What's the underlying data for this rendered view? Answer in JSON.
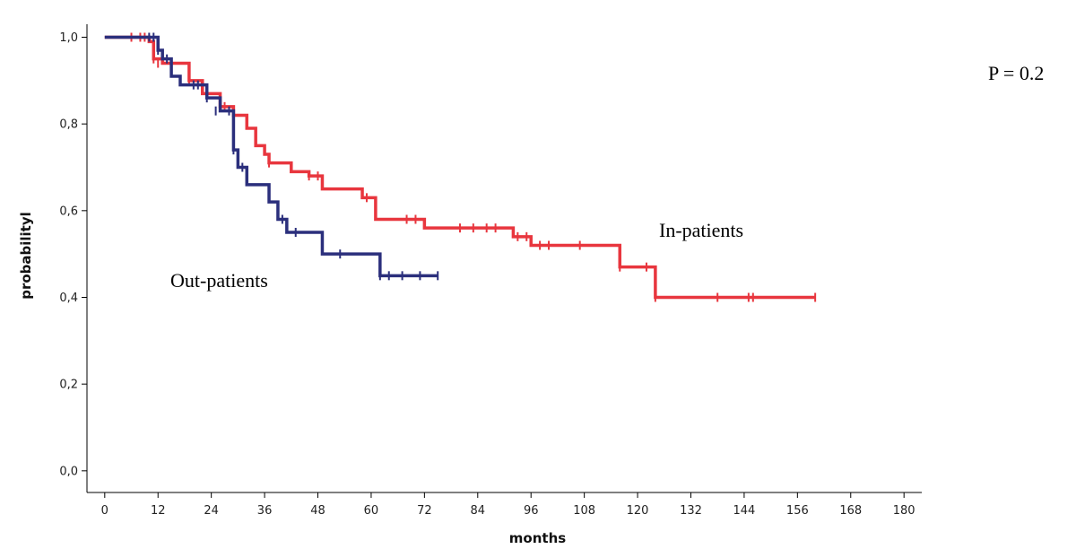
{
  "chart_data": {
    "type": "line",
    "title": "",
    "xlabel": "months",
    "ylabel": "probabilityl",
    "xlim": [
      -4,
      184
    ],
    "ylim": [
      -0.05,
      1.03
    ],
    "x_ticks": [
      0,
      12,
      24,
      36,
      48,
      60,
      72,
      84,
      96,
      108,
      120,
      132,
      144,
      156,
      168,
      180
    ],
    "y_ticks": [
      0.0,
      0.2,
      0.4,
      0.6,
      0.8,
      1.0
    ],
    "x_tick_labels": [
      "0",
      "12",
      "24",
      "36",
      "48",
      "60",
      "72",
      "84",
      "96",
      "108",
      "120",
      "132",
      "144",
      "156",
      "168",
      "180"
    ],
    "y_tick_labels": [
      "0,0",
      "0,2",
      "0,4",
      "0,6",
      "0,8",
      "1,0"
    ],
    "grid": false,
    "legend": "none",
    "annotations": [
      {
        "text": "P = 0.2"
      },
      {
        "text": "In-patients"
      },
      {
        "text": "Out-patients"
      }
    ],
    "series": [
      {
        "name": "In-patients",
        "color": "#e8363e",
        "steps": [
          [
            0,
            1.0
          ],
          [
            10,
            0.99
          ],
          [
            11,
            0.95
          ],
          [
            13,
            0.94
          ],
          [
            19,
            0.9
          ],
          [
            22,
            0.87
          ],
          [
            26,
            0.84
          ],
          [
            29,
            0.82
          ],
          [
            32,
            0.79
          ],
          [
            34,
            0.75
          ],
          [
            36,
            0.73
          ],
          [
            37,
            0.71
          ],
          [
            42,
            0.69
          ],
          [
            46,
            0.68
          ],
          [
            49,
            0.65
          ],
          [
            58,
            0.63
          ],
          [
            61,
            0.58
          ],
          [
            72,
            0.56
          ],
          [
            92,
            0.54
          ],
          [
            96,
            0.52
          ],
          [
            116,
            0.47
          ],
          [
            124,
            0.4
          ],
          [
            160,
            0.4
          ]
        ],
        "censored": [
          [
            6,
            1.0
          ],
          [
            8,
            1.0
          ],
          [
            9,
            1.0
          ],
          [
            11,
            0.95
          ],
          [
            12,
            0.94
          ],
          [
            19,
            0.9
          ],
          [
            27,
            0.84
          ],
          [
            37,
            0.71
          ],
          [
            46,
            0.68
          ],
          [
            48,
            0.68
          ],
          [
            59,
            0.63
          ],
          [
            68,
            0.58
          ],
          [
            70,
            0.58
          ],
          [
            80,
            0.56
          ],
          [
            83,
            0.56
          ],
          [
            86,
            0.56
          ],
          [
            88,
            0.56
          ],
          [
            93,
            0.54
          ],
          [
            95,
            0.54
          ],
          [
            98,
            0.52
          ],
          [
            100,
            0.52
          ],
          [
            107,
            0.52
          ],
          [
            116,
            0.47
          ],
          [
            122,
            0.47
          ],
          [
            124,
            0.4
          ],
          [
            138,
            0.4
          ],
          [
            145,
            0.4
          ],
          [
            146,
            0.4
          ],
          [
            160,
            0.4
          ]
        ]
      },
      {
        "name": "Out-patients",
        "color": "#2b2f7c",
        "steps": [
          [
            0,
            1.0
          ],
          [
            12,
            0.97
          ],
          [
            13,
            0.95
          ],
          [
            15,
            0.91
          ],
          [
            17,
            0.89
          ],
          [
            23,
            0.86
          ],
          [
            26,
            0.83
          ],
          [
            29,
            0.74
          ],
          [
            30,
            0.7
          ],
          [
            32,
            0.66
          ],
          [
            37,
            0.62
          ],
          [
            39,
            0.58
          ],
          [
            41,
            0.55
          ],
          [
            49,
            0.5
          ],
          [
            62,
            0.45
          ],
          [
            75,
            0.45
          ]
        ],
        "censored": [
          [
            10,
            1.0
          ],
          [
            11,
            1.0
          ],
          [
            12,
            0.97
          ],
          [
            14,
            0.95
          ],
          [
            20,
            0.89
          ],
          [
            21,
            0.89
          ],
          [
            23,
            0.86
          ],
          [
            25,
            0.83
          ],
          [
            28,
            0.83
          ],
          [
            29,
            0.74
          ],
          [
            31,
            0.7
          ],
          [
            40,
            0.58
          ],
          [
            43,
            0.55
          ],
          [
            53,
            0.5
          ],
          [
            62,
            0.45
          ],
          [
            64,
            0.45
          ],
          [
            67,
            0.45
          ],
          [
            71,
            0.45
          ],
          [
            75,
            0.45
          ]
        ]
      }
    ]
  }
}
